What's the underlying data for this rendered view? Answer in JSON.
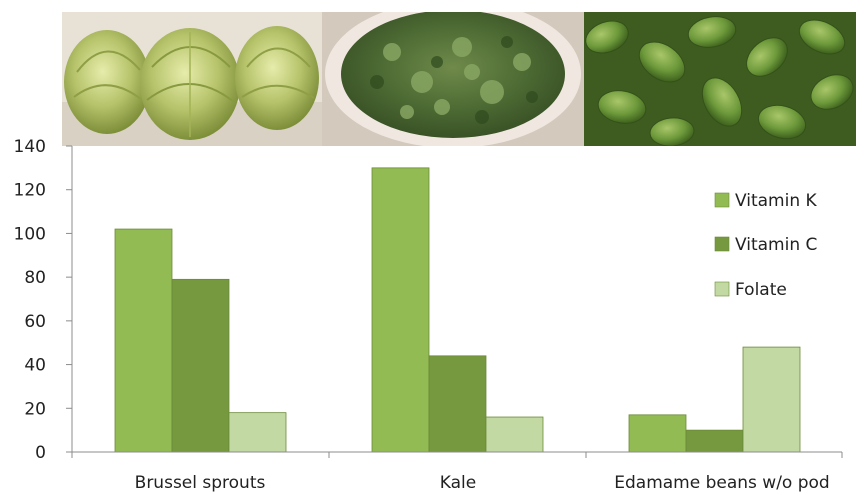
{
  "photos": [
    {
      "name": "brussel-sprouts-photo"
    },
    {
      "name": "kale-photo"
    },
    {
      "name": "edamame-photo"
    }
  ],
  "chart_data": {
    "type": "bar",
    "categories": [
      "Brussel sprouts",
      "Kale",
      "Edamame beans w/o pod"
    ],
    "series": [
      {
        "name": "Vitamin K",
        "values": [
          102,
          130,
          17
        ],
        "color": "#93bb53"
      },
      {
        "name": "Vitamin C",
        "values": [
          79,
          44,
          10
        ],
        "color": "#76983f"
      },
      {
        "name": "Folate",
        "values": [
          18,
          16,
          48
        ],
        "color": "#c2d9a3"
      }
    ],
    "ylim": [
      0,
      140
    ],
    "yticks": [
      0,
      20,
      40,
      60,
      80,
      100,
      120,
      140
    ],
    "grid": false,
    "legend_position": "right"
  }
}
